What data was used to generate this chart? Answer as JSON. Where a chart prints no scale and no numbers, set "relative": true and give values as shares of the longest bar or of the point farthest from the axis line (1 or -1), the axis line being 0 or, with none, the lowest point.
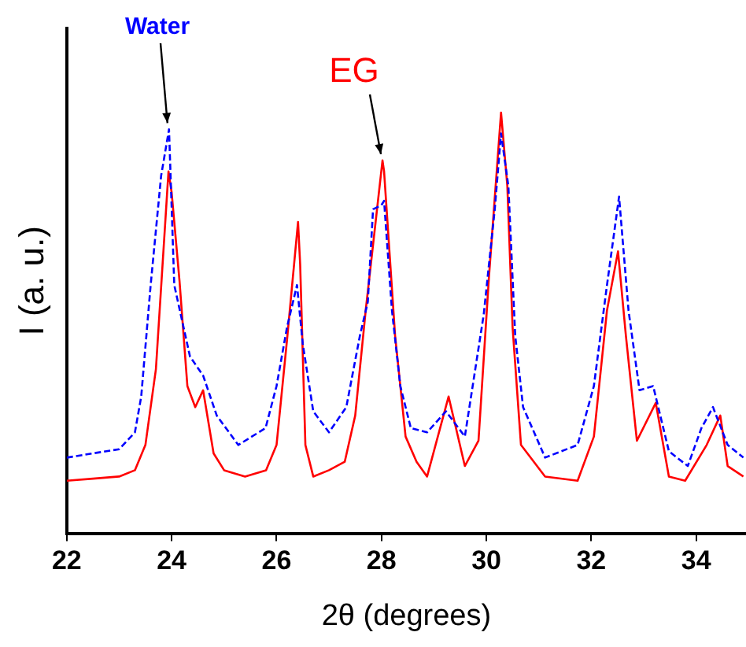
{
  "chart_data": {
    "type": "line",
    "relative": true,
    "xlabel": "2θ (degrees)",
    "ylabel": "I (a. u.)",
    "xlim": [
      22,
      34.95
    ],
    "xticks": [
      22,
      24,
      26,
      28,
      30,
      32,
      34
    ],
    "grid": false,
    "legend": false,
    "marker": "none",
    "series": [
      {
        "name": "Water",
        "color": "#0000ff",
        "line_style": "dashed",
        "x": [
          22.0,
          22.5,
          23.0,
          23.3,
          23.42,
          23.6,
          23.8,
          23.95,
          24.05,
          24.35,
          24.6,
          24.86,
          25.27,
          25.79,
          26.0,
          26.2,
          26.39,
          26.5,
          26.7,
          27.0,
          27.33,
          27.59,
          27.74,
          27.84,
          28.0,
          28.05,
          28.2,
          28.36,
          28.56,
          28.87,
          29.23,
          29.59,
          29.95,
          30.16,
          30.28,
          30.42,
          30.55,
          30.7,
          31.12,
          31.74,
          32.05,
          32.3,
          32.53,
          32.71,
          32.92,
          33.18,
          33.48,
          33.84,
          34.1,
          34.32,
          34.6,
          34.9
        ],
        "values": [
          0.18,
          0.19,
          0.2,
          0.24,
          0.325,
          0.59,
          0.85,
          0.96,
          0.59,
          0.42,
          0.375,
          0.28,
          0.21,
          0.25,
          0.35,
          0.49,
          0.59,
          0.45,
          0.29,
          0.24,
          0.3,
          0.47,
          0.55,
          0.77,
          0.78,
          0.79,
          0.53,
          0.35,
          0.25,
          0.24,
          0.29,
          0.23,
          0.52,
          0.77,
          0.95,
          0.825,
          0.47,
          0.3,
          0.18,
          0.21,
          0.35,
          0.59,
          0.8,
          0.53,
          0.34,
          0.35,
          0.195,
          0.16,
          0.25,
          0.3,
          0.21,
          0.18
        ]
      },
      {
        "name": "EG",
        "color": "#ff0000",
        "line_style": "solid",
        "x": [
          22.0,
          22.5,
          23.0,
          23.3,
          23.5,
          23.7,
          23.94,
          24.0,
          24.15,
          24.3,
          24.45,
          24.6,
          24.8,
          25.0,
          25.4,
          25.8,
          26.0,
          26.2,
          26.41,
          26.45,
          26.55,
          26.7,
          27.0,
          27.3,
          27.5,
          27.7,
          28.02,
          28.05,
          28.26,
          28.46,
          28.67,
          28.87,
          29.28,
          29.59,
          29.85,
          30.05,
          30.28,
          30.4,
          30.5,
          30.66,
          31.12,
          31.74,
          32.05,
          32.3,
          32.51,
          32.66,
          32.87,
          33.23,
          33.48,
          33.79,
          34.2,
          34.46,
          34.6,
          34.9
        ],
        "values": [
          0.125,
          0.13,
          0.135,
          0.15,
          0.21,
          0.39,
          0.86,
          0.81,
          0.6,
          0.35,
          0.3,
          0.34,
          0.19,
          0.15,
          0.135,
          0.15,
          0.21,
          0.46,
          0.74,
          0.64,
          0.21,
          0.135,
          0.15,
          0.17,
          0.28,
          0.53,
          0.886,
          0.86,
          0.47,
          0.23,
          0.17,
          0.135,
          0.325,
          0.16,
          0.22,
          0.61,
          1.0,
          0.825,
          0.49,
          0.21,
          0.135,
          0.125,
          0.23,
          0.53,
          0.67,
          0.47,
          0.22,
          0.31,
          0.135,
          0.125,
          0.21,
          0.28,
          0.16,
          0.135
        ]
      }
    ]
  }
}
